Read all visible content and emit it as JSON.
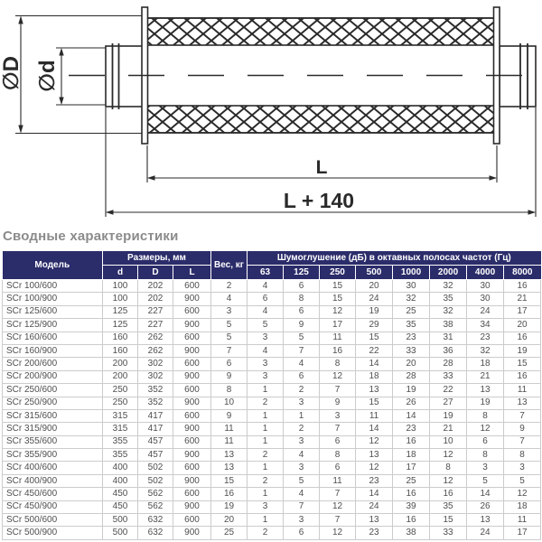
{
  "diagram": {
    "labels": {
      "outer_diameter": "∅D",
      "inner_diameter": "∅d",
      "length": "L",
      "total_length": "L + 140"
    }
  },
  "section_title": "Сводные характеристики",
  "table": {
    "headers": {
      "model": "Модель",
      "dimensions_group": "Размеры, мм",
      "d": "d",
      "D": "D",
      "L": "L",
      "weight": "Вес, кг",
      "attenuation_group": "Шумоглушение (дБ) в октавных полосах частот (Гц)",
      "frequencies": [
        "63",
        "125",
        "250",
        "500",
        "1000",
        "2000",
        "4000",
        "8000"
      ]
    },
    "rows": [
      {
        "model": "SCr 100/600",
        "d": 100,
        "D": 202,
        "L": 600,
        "weight": 2,
        "attenuation": [
          4,
          6,
          15,
          20,
          30,
          32,
          30,
          16
        ]
      },
      {
        "model": "SCr 100/900",
        "d": 100,
        "D": 202,
        "L": 900,
        "weight": 4,
        "attenuation": [
          6,
          8,
          15,
          24,
          32,
          35,
          30,
          21
        ]
      },
      {
        "model": "SCr 125/600",
        "d": 125,
        "D": 227,
        "L": 600,
        "weight": 3,
        "attenuation": [
          4,
          6,
          12,
          19,
          25,
          32,
          24,
          17
        ]
      },
      {
        "model": "SCr 125/900",
        "d": 125,
        "D": 227,
        "L": 900,
        "weight": 5,
        "attenuation": [
          5,
          9,
          17,
          29,
          35,
          38,
          34,
          20
        ]
      },
      {
        "model": "SCr 160/600",
        "d": 160,
        "D": 262,
        "L": 600,
        "weight": 5,
        "attenuation": [
          3,
          5,
          11,
          15,
          23,
          31,
          23,
          16
        ]
      },
      {
        "model": "SCr 160/900",
        "d": 160,
        "D": 262,
        "L": 900,
        "weight": 7,
        "attenuation": [
          4,
          7,
          16,
          22,
          33,
          36,
          32,
          19
        ]
      },
      {
        "model": "SCr 200/600",
        "d": 200,
        "D": 302,
        "L": 600,
        "weight": 6,
        "attenuation": [
          3,
          4,
          8,
          14,
          20,
          28,
          18,
          15
        ]
      },
      {
        "model": "SCr 200/900",
        "d": 200,
        "D": 302,
        "L": 900,
        "weight": 9,
        "attenuation": [
          3,
          6,
          12,
          18,
          28,
          33,
          21,
          16
        ]
      },
      {
        "model": "SCr 250/600",
        "d": 250,
        "D": 352,
        "L": 600,
        "weight": 8,
        "attenuation": [
          1,
          2,
          7,
          13,
          19,
          22,
          13,
          11
        ]
      },
      {
        "model": "SCr 250/900",
        "d": 250,
        "D": 352,
        "L": 900,
        "weight": 10,
        "attenuation": [
          2,
          3,
          9,
          15,
          26,
          27,
          19,
          13
        ]
      },
      {
        "model": "SCr 315/600",
        "d": 315,
        "D": 417,
        "L": 600,
        "weight": 9,
        "attenuation": [
          1,
          1,
          3,
          11,
          14,
          19,
          8,
          7
        ]
      },
      {
        "model": "SCr 315/900",
        "d": 315,
        "D": 417,
        "L": 900,
        "weight": 11,
        "attenuation": [
          1,
          2,
          7,
          14,
          23,
          21,
          12,
          9
        ]
      },
      {
        "model": "SCr 355/600",
        "d": 355,
        "D": 457,
        "L": 600,
        "weight": 11,
        "attenuation": [
          1,
          3,
          6,
          12,
          16,
          10,
          6,
          7
        ]
      },
      {
        "model": "SCr 355/900",
        "d": 355,
        "D": 457,
        "L": 900,
        "weight": 13,
        "attenuation": [
          2,
          4,
          8,
          13,
          18,
          12,
          8,
          8
        ]
      },
      {
        "model": "SCr 400/600",
        "d": 400,
        "D": 502,
        "L": 600,
        "weight": 13,
        "attenuation": [
          1,
          3,
          6,
          12,
          17,
          8,
          3,
          3
        ]
      },
      {
        "model": "SCr 400/900",
        "d": 400,
        "D": 502,
        "L": 900,
        "weight": 15,
        "attenuation": [
          2,
          5,
          11,
          23,
          25,
          12,
          5,
          5
        ]
      },
      {
        "model": "SCr 450/600",
        "d": 450,
        "D": 562,
        "L": 600,
        "weight": 16,
        "attenuation": [
          1,
          4,
          7,
          14,
          16,
          16,
          14,
          12
        ]
      },
      {
        "model": "SCr 450/900",
        "d": 450,
        "D": 562,
        "L": 900,
        "weight": 19,
        "attenuation": [
          3,
          7,
          12,
          24,
          39,
          35,
          26,
          18
        ]
      },
      {
        "model": "SCr 500/600",
        "d": 500,
        "D": 632,
        "L": 600,
        "weight": 20,
        "attenuation": [
          1,
          3,
          7,
          13,
          16,
          15,
          13,
          11
        ]
      },
      {
        "model": "SCr 500/900",
        "d": 500,
        "D": 632,
        "L": 900,
        "weight": 25,
        "attenuation": [
          2,
          6,
          12,
          23,
          38,
          33,
          24,
          17
        ]
      }
    ]
  },
  "colors": {
    "header_bg": "#2b2c6a",
    "header_text": "#ffffff",
    "body_text": "#4f4f4f",
    "grid_border": "#cccccc",
    "title_text": "#8b8b8b",
    "drawing_line": "#2a2a2a"
  }
}
